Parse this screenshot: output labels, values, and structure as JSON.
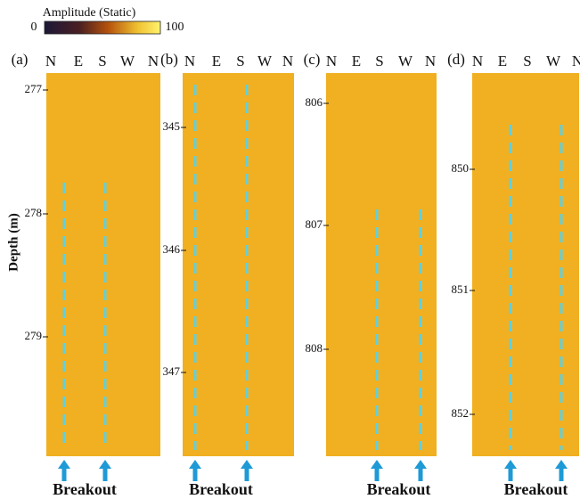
{
  "colorbar": {
    "title": "Amplitude (Static)",
    "min": 0,
    "max": 100
  },
  "ylabel": "Depth (m)",
  "panels": [
    {
      "label": "(a)",
      "azimuths": [
        "N",
        "E",
        "S",
        "W",
        "N"
      ],
      "depth_ticks": [
        277,
        278,
        279
      ],
      "breakout_label": "Breakout"
    },
    {
      "label": "(b)",
      "azimuths": [
        "N",
        "E",
        "S",
        "W",
        "N"
      ],
      "depth_ticks": [
        345,
        346,
        347
      ],
      "breakout_label": "Breakout"
    },
    {
      "label": "(c)",
      "azimuths": [
        "N",
        "E",
        "S",
        "W",
        "N"
      ],
      "depth_ticks": [
        806,
        807,
        808
      ],
      "breakout_label": "Breakout"
    },
    {
      "label": "(d)",
      "azimuths": [
        "N",
        "E",
        "S",
        "W",
        "N"
      ],
      "depth_ticks": [
        850,
        851,
        852
      ],
      "breakout_label": "Breakout"
    }
  ]
}
